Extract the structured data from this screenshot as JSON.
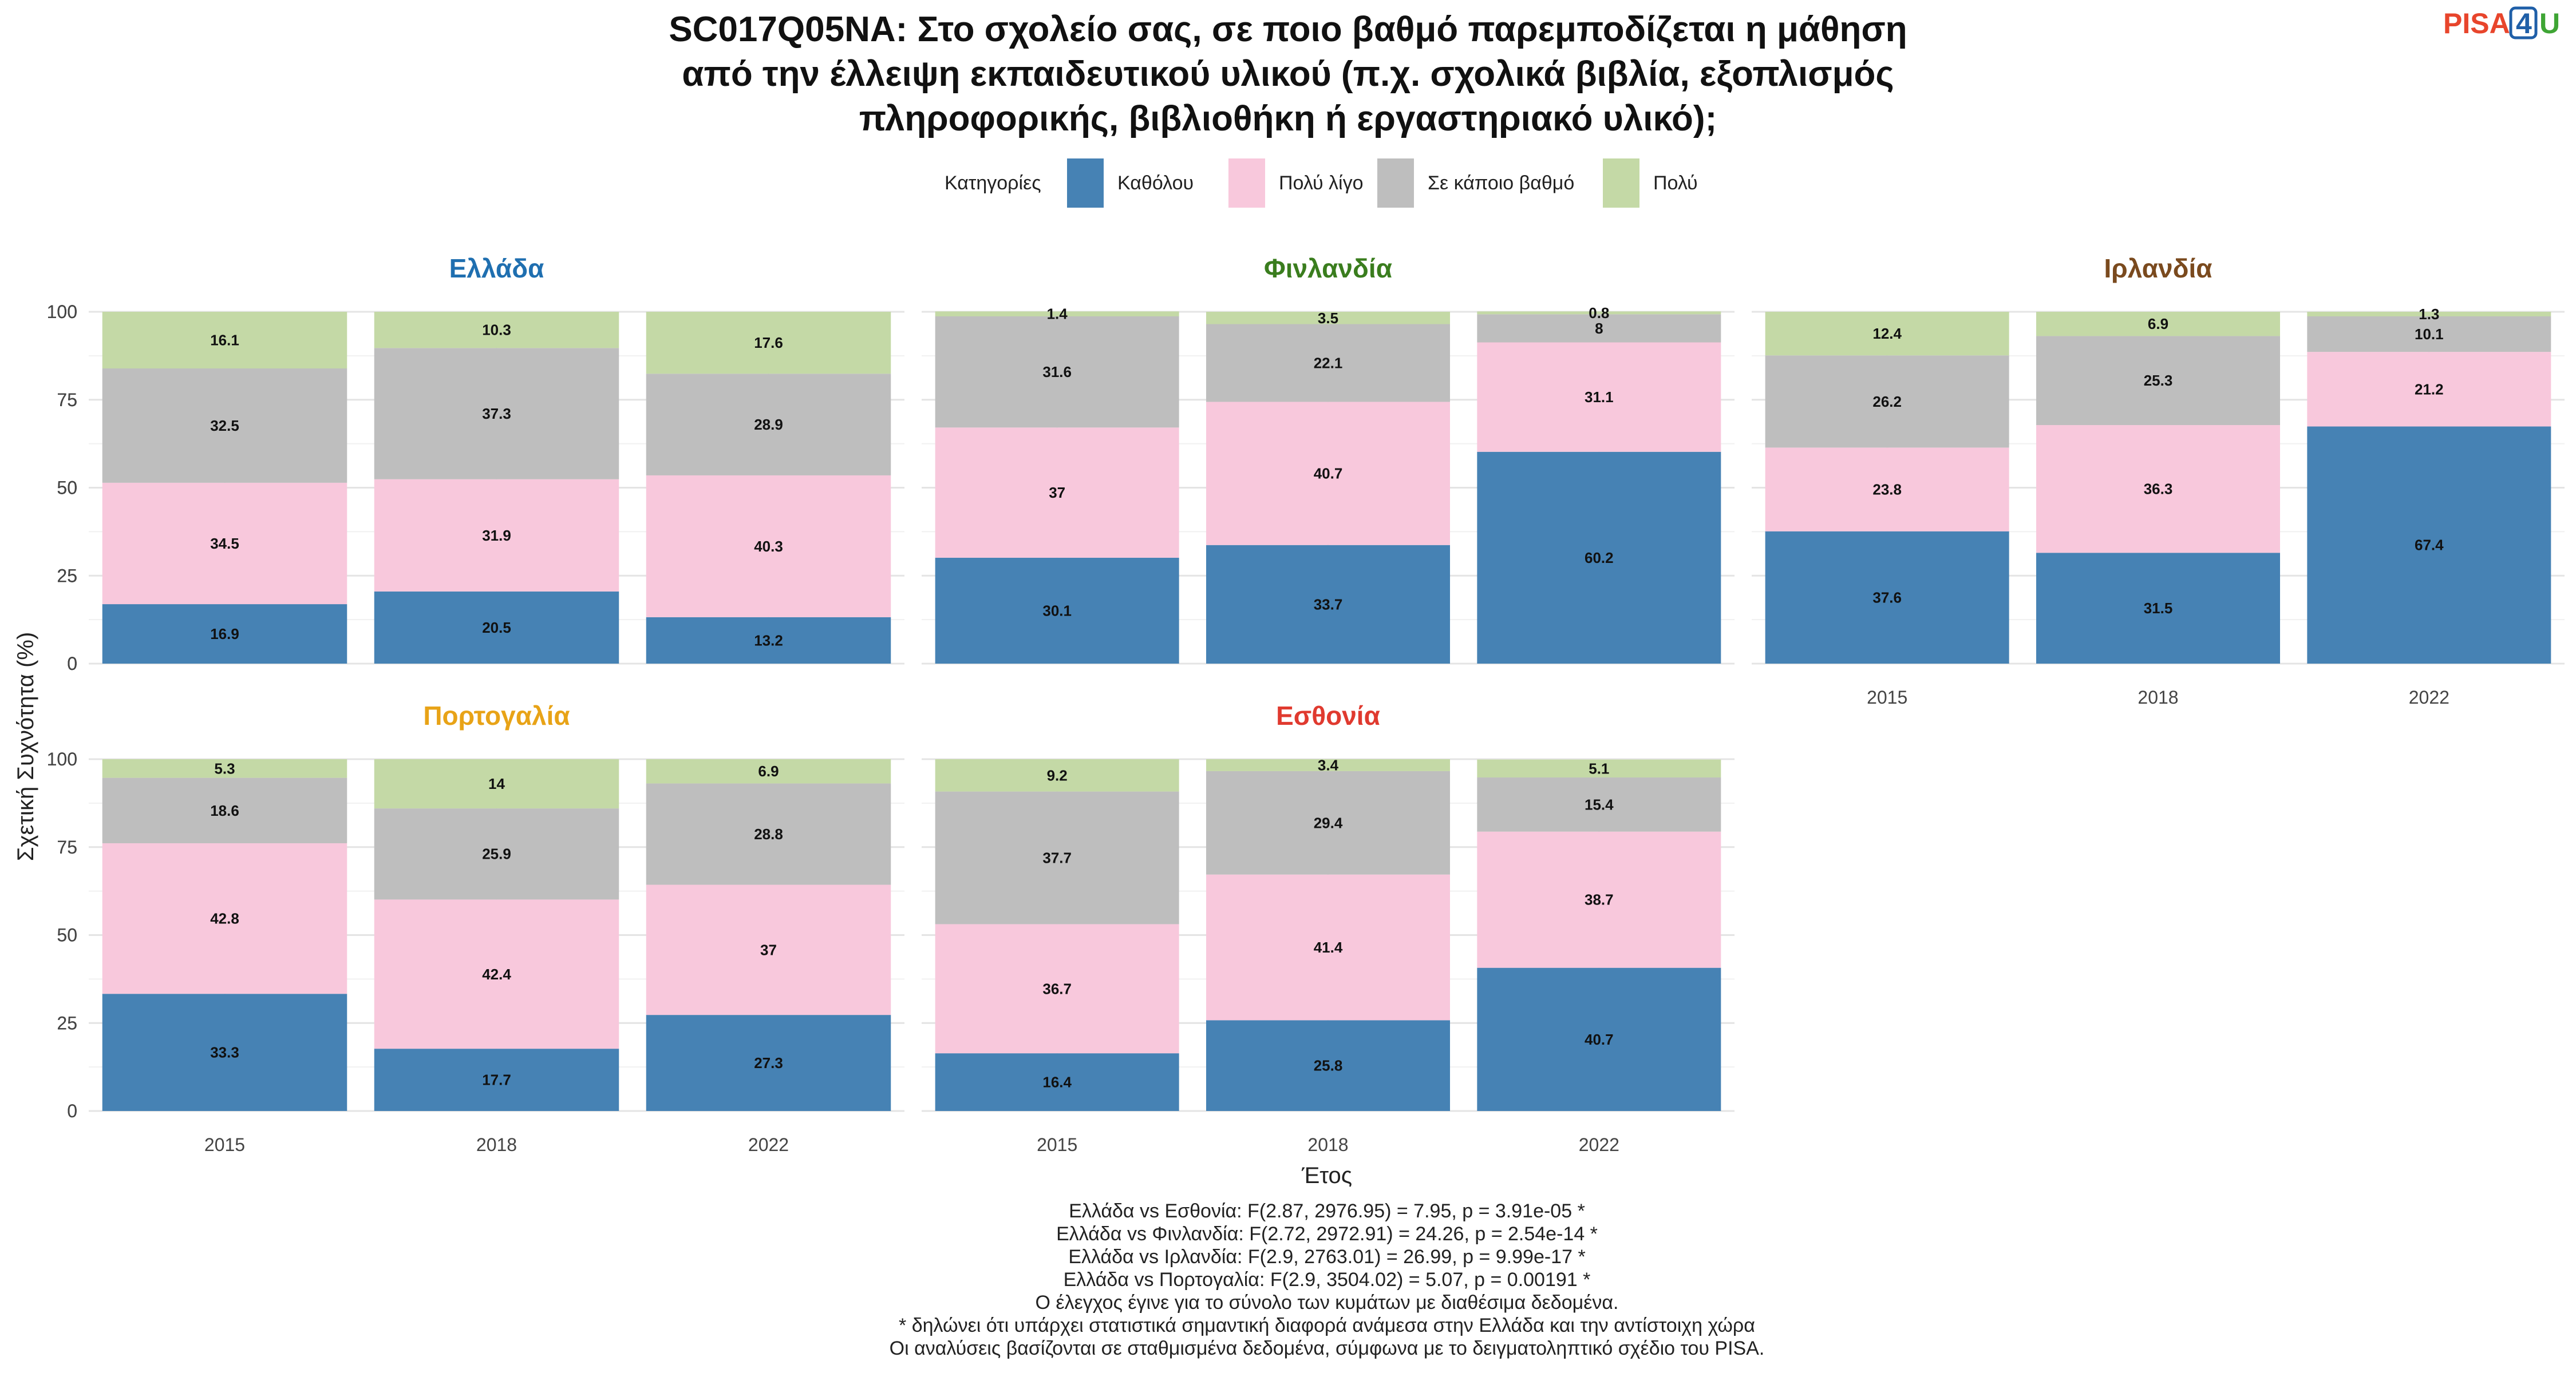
{
  "title_lines": [
    "SC017Q05NA: Στο σχολείο σας, σε ποιο βαθμό παρεμποδίζεται η μάθηση",
    "από την έλλειψη εκπαιδευτικού υλικού (π.χ. σχολικά βιβλία, εξοπλισμός",
    "πληροφορικής, βιβλιοθήκη ή εργαστηριακό υλικό);"
  ],
  "logo": {
    "text_a": "PISA",
    "text_b": "4",
    "text_c": "U",
    "color_a": "#e8452c",
    "color_b": "#1f5fa8",
    "color_c": "#3fa535"
  },
  "legend": {
    "title": "Κατηγορίες",
    "position": "top",
    "items": [
      {
        "label": "Καθόλου",
        "color": "#4682b4"
      },
      {
        "label": "Πολύ λίγο",
        "color": "#f8c8dc"
      },
      {
        "label": "Σε κάποιο βαθμό",
        "color": "#bebebe"
      },
      {
        "label": "Πολύ",
        "color": "#c4d9a6"
      }
    ]
  },
  "chart_data": {
    "type": "bar",
    "stacked": true,
    "xlabel": "Έτος",
    "ylabel": "Σχετική Συχνότητα (%)",
    "ylim": [
      0,
      100
    ],
    "yticks": [
      0,
      25,
      50,
      75,
      100
    ],
    "categories": [
      "2015",
      "2018",
      "2022"
    ],
    "series_names": [
      "Καθόλου",
      "Πολύ λίγο",
      "Σε κάποιο βαθμό",
      "Πολύ"
    ],
    "grid": true,
    "facets": [
      {
        "name": "Ελλάδα",
        "color": "#1f6fb0",
        "values": [
          [
            16.9,
            34.5,
            32.5,
            16.1
          ],
          [
            20.5,
            31.9,
            37.3,
            10.3
          ],
          [
            13.2,
            40.3,
            28.9,
            17.6
          ]
        ]
      },
      {
        "name": "Φινλανδία",
        "color": "#3a7d1e",
        "values": [
          [
            30.1,
            37,
            31.6,
            1.4
          ],
          [
            33.7,
            40.7,
            22.1,
            3.5
          ],
          [
            60.2,
            31.1,
            8,
            0.8
          ]
        ]
      },
      {
        "name": "Ιρλανδία",
        "color": "#7a4a1e",
        "values": [
          [
            37.6,
            23.8,
            26.2,
            12.4
          ],
          [
            31.5,
            36.3,
            25.3,
            6.9
          ],
          [
            67.4,
            21.2,
            10.1,
            1.3
          ]
        ]
      },
      {
        "name": "Πορτογαλία",
        "color": "#e8a317",
        "values": [
          [
            33.3,
            42.8,
            18.6,
            5.3
          ],
          [
            17.7,
            42.4,
            25.9,
            14
          ],
          [
            27.3,
            37,
            28.8,
            6.9
          ]
        ]
      },
      {
        "name": "Εσθονία",
        "color": "#e03a2f",
        "values": [
          [
            16.4,
            36.7,
            37.7,
            9.2
          ],
          [
            25.8,
            41.4,
            29.4,
            3.4
          ],
          [
            40.7,
            38.7,
            15.4,
            5.1
          ]
        ]
      }
    ]
  },
  "caption_lines": [
    "Ελλάδα vs Εσθονία: F(2.87, 2976.95) = 7.95, p = 3.91e-05 *",
    "Ελλάδα vs Φινλανδία: F(2.72, 2972.91) = 24.26, p = 2.54e-14 *",
    "Ελλάδα vs Ιρλανδία: F(2.9, 2763.01) = 26.99, p = 9.99e-17 *",
    "Ελλάδα vs Πορτογαλία: F(2.9, 3504.02) = 5.07, p = 0.00191 *",
    "Ο έλεγχος έγινε για το σύνολο των κυμάτων με διαθέσιμα δεδομένα.",
    "* δηλώνει ότι υπάρχει στατιστικά σημαντική διαφορά ανάμεσα στην Ελλάδα και την αντίστοιχη χώρα",
    "Οι αναλύσεις βασίζονται σε σταθμισμένα δεδομένα, σύμφωνα με το δειγματοληπτικό σχέδιο του PISA."
  ]
}
